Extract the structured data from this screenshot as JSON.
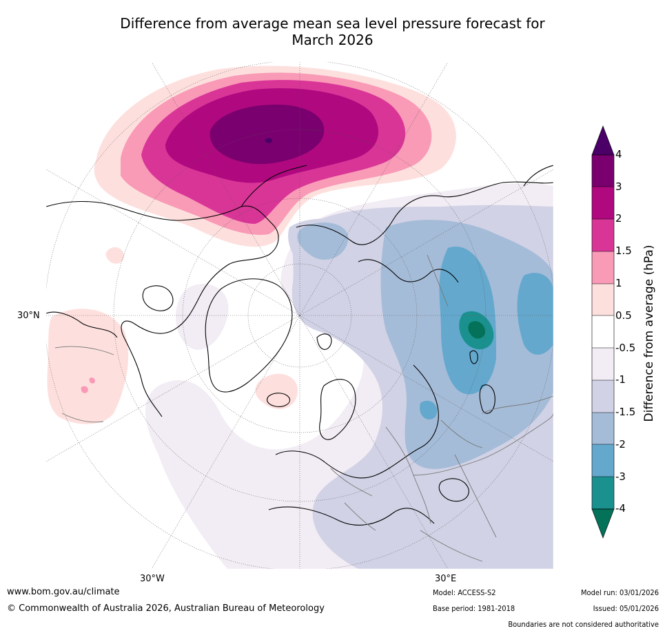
{
  "title": {
    "line1": "Difference from average mean sea level pressure forecast for",
    "line2": "March 2026"
  },
  "map": {
    "lat_label": "30°N",
    "lon_labels": [
      "30°W",
      "30°E"
    ]
  },
  "colorbar": {
    "title": "Difference from average (hPa)",
    "ticks": [
      "4",
      "3",
      "2",
      "1.5",
      "1",
      "0.5",
      "-0.5",
      "-1",
      "-1.5",
      "-2",
      "-3",
      "-4"
    ],
    "colors": [
      "#4a0066",
      "#7a006f",
      "#b0087f",
      "#d93597",
      "#f99ab7",
      "#fde0de",
      "#ffffff",
      "#f2ecf4",
      "#d1d2e5",
      "#a5bcd8",
      "#64a8cd",
      "#1b918f",
      "#047258"
    ]
  },
  "footer": {
    "url": "www.bom.gov.au/climate",
    "copyright": "© Commonwealth of Australia 2026, Australian Bureau of Meteorology",
    "model": "Model: ACCESS-S2",
    "base_period": "Base period: 1981-2018",
    "model_run": "Model run: 03/01/2026",
    "issued": "Issued: 05/01/2026",
    "boundaries": "Boundaries are not considered authoritative"
  }
}
